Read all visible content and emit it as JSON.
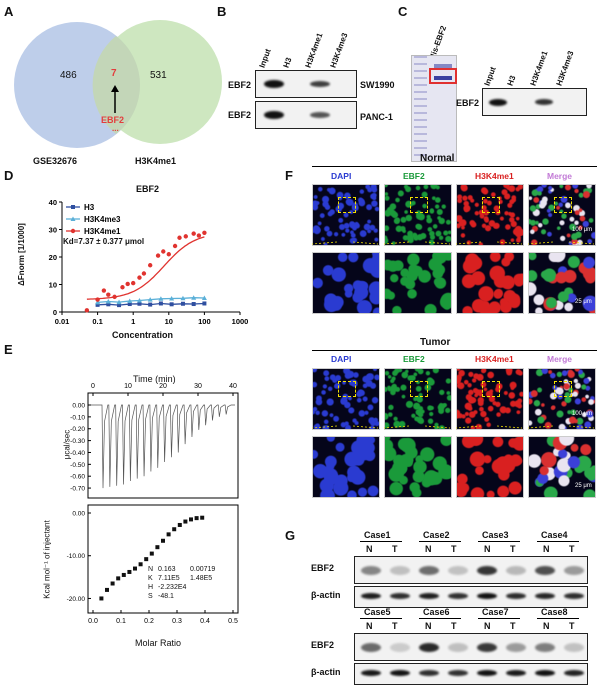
{
  "panel_labels": {
    "A": "A",
    "B": "B",
    "C": "C",
    "D": "D",
    "E": "E",
    "F": "F",
    "G": "G"
  },
  "venn": {
    "left_count": "486",
    "overlap_count": "7",
    "right_count": "531",
    "left_label": "GSE32676",
    "right_label": "H3K4me1",
    "overlap_gene": "EBF2",
    "ellipsis": "...",
    "colors": {
      "left": "#b7c9e8",
      "right": "#c6e3b5",
      "overlap": "#e33d3d"
    }
  },
  "panel_b": {
    "lanes": [
      "Input",
      "H3",
      "H3K4me1",
      "H3K4me3"
    ],
    "rows": [
      {
        "protein": "EBF2",
        "cell_line": "SW1990"
      },
      {
        "protein": "EBF2",
        "cell_line": "PANC-1"
      }
    ]
  },
  "panel_c": {
    "gel_label": "His-EBF2",
    "lanes": [
      "Input",
      "H3",
      "H3K4me1",
      "H3K4me3"
    ],
    "row_label": "EBF2"
  },
  "chart_data": {
    "type": "scatter",
    "title": "EBF2",
    "xlabel": "Concentration",
    "ylabel": "ΔFnorm [1/1000]",
    "x_scale": "log",
    "xlim": [
      0.01,
      1000
    ],
    "ylim": [
      0,
      40
    ],
    "x_ticks": [
      "0.01",
      "0.1",
      "1",
      "10",
      "100",
      "1000"
    ],
    "y_ticks": [
      "0",
      "10",
      "20",
      "30",
      "40"
    ],
    "annotation": "Kd=7.37 ± 0.377 μmol",
    "legend_position": "top-left",
    "series": [
      {
        "name": "H3",
        "color": "#2f4fa0",
        "marker": "square",
        "x": [
          0.1,
          0.2,
          0.4,
          0.8,
          1.5,
          3,
          6,
          12,
          25,
          50,
          100
        ],
        "y": [
          2.6,
          2.8,
          2.5,
          2.9,
          3.0,
          2.7,
          3.1,
          2.8,
          3.0,
          2.9,
          3.1
        ]
      },
      {
        "name": "H3K4me3",
        "color": "#5bb0d8",
        "marker": "triangle",
        "x": [
          0.1,
          0.2,
          0.4,
          0.8,
          1.5,
          3,
          6,
          12,
          25,
          50,
          100
        ],
        "y": [
          3.5,
          3.8,
          3.6,
          4.0,
          4.2,
          4.5,
          4.8,
          4.9,
          5.0,
          5.2,
          5.1
        ]
      },
      {
        "name": "H3K4me1",
        "color": "#e0332f",
        "marker": "circle",
        "x": [
          0.05,
          0.1,
          0.15,
          0.2,
          0.3,
          0.5,
          0.7,
          1,
          1.5,
          2,
          3,
          5,
          7,
          10,
          15,
          20,
          30,
          50,
          70,
          100
        ],
        "y": [
          0.6,
          4.5,
          7.8,
          6.3,
          5.5,
          9.0,
          10.2,
          10.5,
          12.5,
          14.0,
          17.0,
          20.5,
          22.0,
          21.0,
          24.0,
          27.0,
          27.5,
          28.5,
          27.8,
          28.8
        ],
        "fit_kd": 7.37
      }
    ]
  },
  "panel_e": {
    "top_xlabel": "Time (min)",
    "top_ylabel": "μcal/sec",
    "time_ticks": [
      "0",
      "10",
      "20",
      "30",
      "40"
    ],
    "top_y_ticks": [
      "0.00",
      "-0.10",
      "-0.20",
      "-0.30",
      "-0.40",
      "-0.50",
      "-0.60",
      "-0.70"
    ],
    "bottom_ylabel": "Kcal mol⁻¹ of injectant",
    "bottom_xlabel": "Molar Ratio",
    "bottom_y_ticks": [
      "0.00",
      "-10.00",
      "-20.00"
    ],
    "molar_ticks": [
      "0.0",
      "0.1",
      "0.2",
      "0.3",
      "0.4",
      "0.5"
    ],
    "injections": [
      0.7,
      0.69,
      0.68,
      0.67,
      0.64,
      0.62,
      0.6,
      0.56,
      0.53,
      0.48,
      0.44,
      0.4,
      0.33,
      0.27,
      0.21,
      0.17,
      0.13,
      0.1,
      0.08
    ],
    "binding_points": {
      "x": [
        0.03,
        0.05,
        0.07,
        0.09,
        0.11,
        0.13,
        0.15,
        0.17,
        0.19,
        0.21,
        0.23,
        0.25,
        0.27,
        0.29,
        0.31,
        0.33,
        0.35,
        0.37,
        0.39
      ],
      "y": [
        -20.0,
        -18.0,
        -16.5,
        -15.3,
        -14.5,
        -13.8,
        -13.0,
        -12.0,
        -10.8,
        -9.5,
        -8.0,
        -6.5,
        -5.0,
        -3.8,
        -2.8,
        -2.0,
        -1.5,
        -1.2,
        -1.1
      ]
    },
    "params": [
      {
        "k": "N",
        "v": "0.163",
        "e": "0.00719"
      },
      {
        "k": "K",
        "v": "7.11E5",
        "e": "1.48E5"
      },
      {
        "k": "H",
        "v": "-2.232E4",
        "e": ""
      },
      {
        "k": "S",
        "v": "-48.1",
        "e": ""
      }
    ]
  },
  "panel_f": {
    "channels": [
      {
        "name": "DAPI",
        "color": "#2a3bd1"
      },
      {
        "name": "EBF2",
        "color": "#1a9a3a"
      },
      {
        "name": "H3K4me1",
        "color": "#d92020"
      },
      {
        "name": "Merge",
        "color": "#c27ad6"
      }
    ],
    "normal_title": "Normal",
    "tumor_title": "Tumor",
    "scale_low": "100 μm",
    "scale_high": "25 μm"
  },
  "panel_g": {
    "cases_top": [
      "Case1",
      "Case2",
      "Case3",
      "Case4"
    ],
    "cases_bottom": [
      "Case5",
      "Case6",
      "Case7",
      "Case8"
    ],
    "lane_n": "N",
    "lane_t": "T",
    "row1": "EBF2",
    "row2": "β-actin"
  }
}
